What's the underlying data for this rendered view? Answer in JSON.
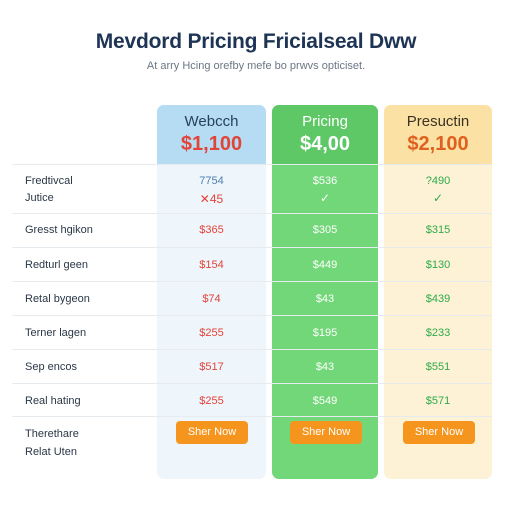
{
  "header": {
    "title": "Mevdord Pricing Fricialseal Dww",
    "subtitle": "At arry Hcing orefby mefe bo prwvs opticiset."
  },
  "plans": [
    {
      "name": "Webcch",
      "price": "$1,100",
      "button": "Sher Now"
    },
    {
      "name": "Pricing",
      "price": "$4,00",
      "button": "Sher Now"
    },
    {
      "name": "Presuctin",
      "price": "$2,100",
      "button": "Sher Now"
    }
  ],
  "rows": [
    {
      "label": "Fredtivcal",
      "values": [
        "7754",
        "$536",
        "?490"
      ]
    },
    {
      "label": "Jutice",
      "values": [
        "✕45",
        "✓",
        "✓"
      ]
    },
    {
      "label": "Gresst hgikon",
      "values": [
        "$365",
        "$305",
        "$315"
      ]
    },
    {
      "label": "Redturl geen",
      "values": [
        "$154",
        "$449",
        "$130"
      ]
    },
    {
      "label": "Retal bygeon",
      "values": [
        "$74",
        "$43",
        "$439"
      ]
    },
    {
      "label": "Terner lagen",
      "values": [
        "$255",
        "$195",
        "$233"
      ]
    },
    {
      "label": "Sep encos",
      "values": [
        "$517",
        "$43",
        "$551"
      ]
    },
    {
      "label": "Real hating",
      "values": [
        "$255",
        "$549",
        "$571"
      ]
    },
    {
      "label": "Therethare",
      "values": []
    },
    {
      "label": "Relat Uten",
      "values": []
    }
  ],
  "colors": {
    "accent_orange": "#f6951e",
    "green_column": "#71d778",
    "blue_header": "#b5dcf2",
    "yellow_header": "#fbe1a3"
  }
}
